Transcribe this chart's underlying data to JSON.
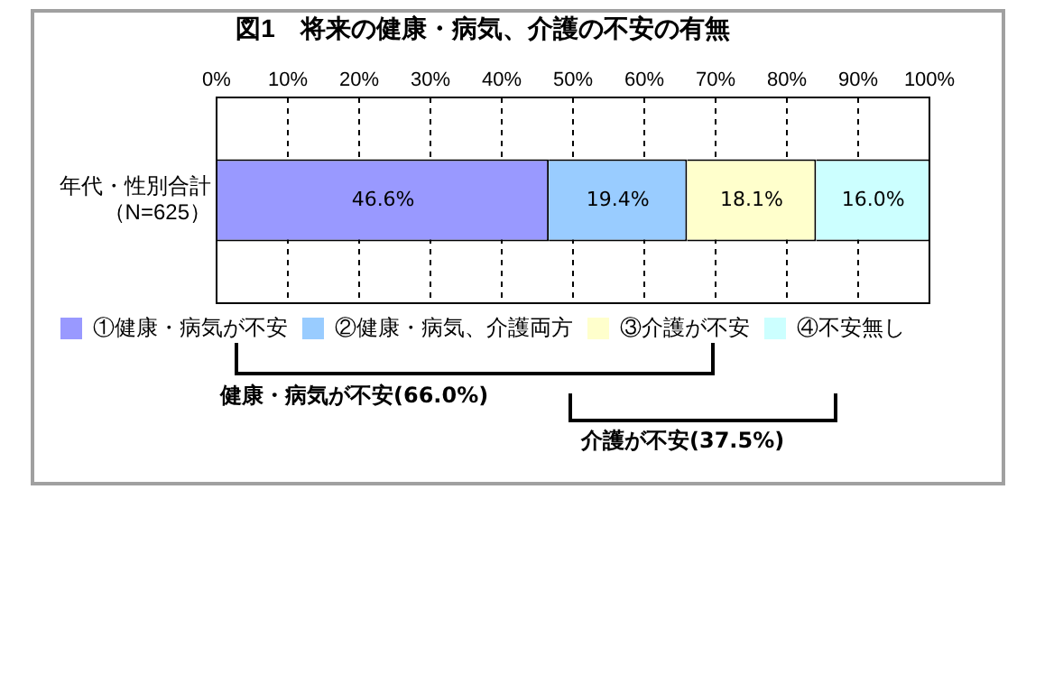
{
  "chart_data": {
    "type": "bar",
    "orientation": "horizontal",
    "stacked": true,
    "title": "図1　将来の健康・病気、介護の不安の有無",
    "categories": [
      "年代・性別合計（N=625）"
    ],
    "series": [
      {
        "name": "①健康・病気が不安",
        "color": "#9999ff",
        "values": [
          46.6
        ],
        "value_labels": [
          "46.6%"
        ]
      },
      {
        "name": "②健康・病気、介護両方",
        "color": "#99ccff",
        "values": [
          19.4
        ],
        "value_labels": [
          "19.4%"
        ]
      },
      {
        "name": "③介護が不安",
        "color": "#ffffcc",
        "values": [
          18.1
        ],
        "value_labels": [
          "18.1%"
        ]
      },
      {
        "name": "④不安無し",
        "color": "#ccffff",
        "values": [
          16.0
        ],
        "value_labels": [
          "16.0%"
        ]
      }
    ],
    "xlim": [
      0,
      100
    ],
    "xticks": [
      {
        "value": 0,
        "label": "0%"
      },
      {
        "value": 10,
        "label": "10%"
      },
      {
        "value": 20,
        "label": "20%"
      },
      {
        "value": 30,
        "label": "30%"
      },
      {
        "value": 40,
        "label": "40%"
      },
      {
        "value": 50,
        "label": "50%"
      },
      {
        "value": 60,
        "label": "60%"
      },
      {
        "value": 70,
        "label": "70%"
      },
      {
        "value": 80,
        "label": "80%"
      },
      {
        "value": 90,
        "label": "90%"
      },
      {
        "value": 100,
        "label": "100%"
      }
    ],
    "grid": "x",
    "legend": "bottom",
    "annotations": [
      "健康・病気が不安(66.0%)",
      "介護が不安(37.5%)"
    ]
  }
}
